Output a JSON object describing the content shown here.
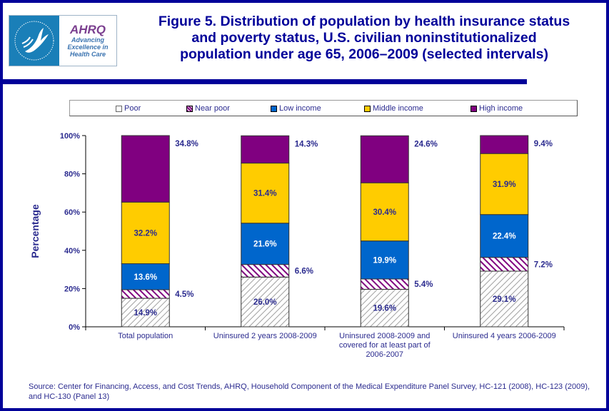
{
  "header": {
    "logo": {
      "hhs_seal": "hhs-eagle-seal",
      "brand": "AHRQ",
      "tagline_lines": [
        "Advancing",
        "Excellence in",
        "Health Care"
      ]
    },
    "title_lines": [
      "Figure 5. Distribution of population by health insurance status",
      "and poverty status, U.S. civilian noninstitutionalized",
      "population under age 65, 2006–2009 (selected intervals)"
    ]
  },
  "colors": {
    "frame": "#000099",
    "text": "#2b2b8f",
    "poor": "#ffffff",
    "poor_hatch": "#a0a0a0",
    "near_poor": "#800080",
    "low_income": "#0066cc",
    "middle_income": "#ffcc00",
    "high_income": "#800080"
  },
  "chart_data": {
    "type": "bar",
    "stacked": true,
    "title": "Figure 5. Distribution of population by health insurance status and poverty status, U.S. civilian noninstitutionalized population under age 65, 2006–2009 (selected intervals)",
    "xlabel": "",
    "ylabel": "Percentage",
    "ylim": [
      0,
      100
    ],
    "yticks": [
      "0%",
      "20%",
      "40%",
      "60%",
      "80%",
      "100%"
    ],
    "grid": false,
    "legend_position": "top",
    "categories": [
      [
        "Total population"
      ],
      [
        "Uninsured 2 years 2008-2009"
      ],
      [
        "Uninsured 2008-2009 and",
        "covered for at least part of",
        "2006-2007"
      ],
      [
        "Uninsured 4 years 2006-2009"
      ]
    ],
    "series": [
      {
        "name": "Poor",
        "pattern": "diagonal-hatch-gray",
        "values": [
          14.9,
          26.0,
          19.6,
          29.1
        ],
        "labels": [
          "14.9%",
          "26.0%",
          "19.6%",
          "29.1%"
        ],
        "label_position": "inside"
      },
      {
        "name": "Near poor",
        "pattern": "diagonal-stripe-purple",
        "values": [
          4.5,
          6.6,
          5.4,
          7.2
        ],
        "labels": [
          "4.5%",
          "6.6%",
          "5.4%",
          "7.2%"
        ],
        "label_position": "outside-right"
      },
      {
        "name": "Low income",
        "pattern": "solid-blue",
        "values": [
          13.6,
          21.6,
          19.9,
          22.4
        ],
        "labels": [
          "13.6%",
          "21.6%",
          "19.9%",
          "22.4%"
        ],
        "label_position": "inside"
      },
      {
        "name": "Middle income",
        "pattern": "solid-yellow",
        "values": [
          32.2,
          31.4,
          30.4,
          31.9
        ],
        "labels": [
          "32.2%",
          "31.4%",
          "30.4%",
          "31.9%"
        ],
        "label_position": "inside"
      },
      {
        "name": "High income",
        "pattern": "solid-purple",
        "values": [
          34.8,
          14.3,
          24.6,
          9.4
        ],
        "labels": [
          "34.8%",
          "14.3%",
          "24.6%",
          "9.4%"
        ],
        "label_position": "outside-right"
      }
    ]
  },
  "legend": {
    "items": [
      "Poor",
      "Near poor",
      "Low income",
      "Middle income",
      "High income"
    ]
  },
  "source": "Source: Center for Financing, Access, and Cost Trends, AHRQ, Household Component of the Medical Expenditure Panel Survey, HC-121 (2008), HC-123 (2009), and HC-130 (Panel 13)"
}
